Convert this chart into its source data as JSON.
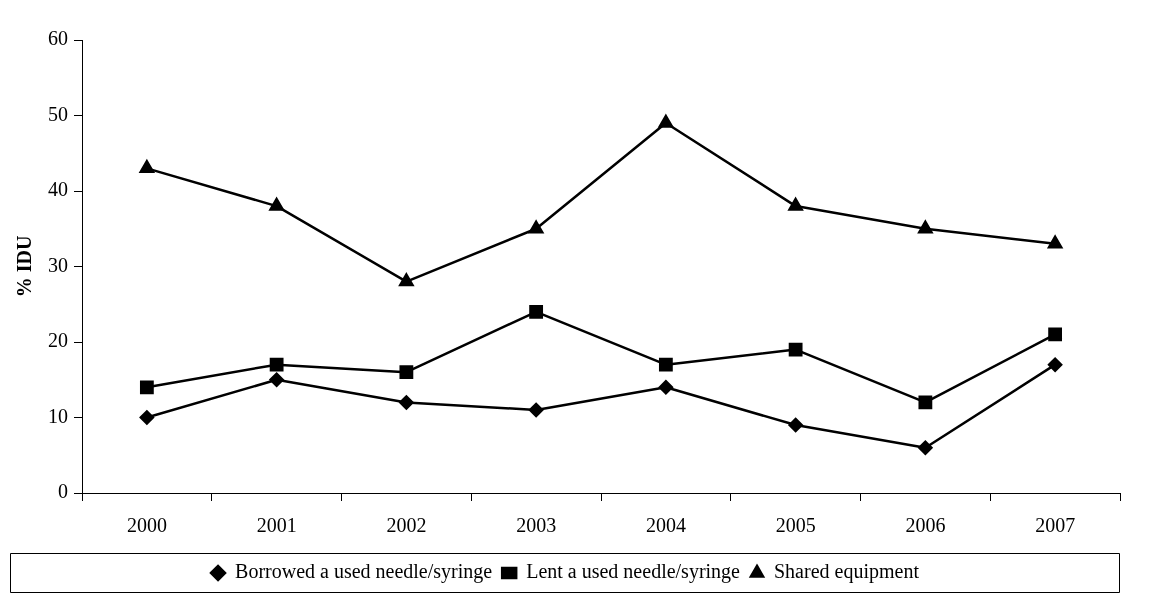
{
  "chart_data": {
    "type": "line",
    "ylabel": "% IDU",
    "categories": [
      "2000",
      "2001",
      "2002",
      "2003",
      "2004",
      "2005",
      "2006",
      "2007"
    ],
    "series": [
      {
        "name": "Borrowed a used needle/syringe",
        "color": "#000000",
        "marker": "diamond",
        "values": [
          10,
          15,
          12,
          11,
          14,
          9,
          6,
          17
        ]
      },
      {
        "name": "Lent a used needle/syringe",
        "color": "#000000",
        "marker": "square",
        "values": [
          14,
          17,
          16,
          24,
          17,
          19,
          12,
          21
        ]
      },
      {
        "name": "Shared equipment",
        "color": "#000000",
        "marker": "triangle",
        "values": [
          43,
          38,
          28,
          35,
          49,
          38,
          35,
          33
        ]
      }
    ],
    "ylim": [
      0,
      60
    ],
    "yticks": [
      0,
      10,
      20,
      30,
      40,
      50,
      60
    ],
    "grid": false,
    "legend": "bottom",
    "line_style": "solid"
  }
}
